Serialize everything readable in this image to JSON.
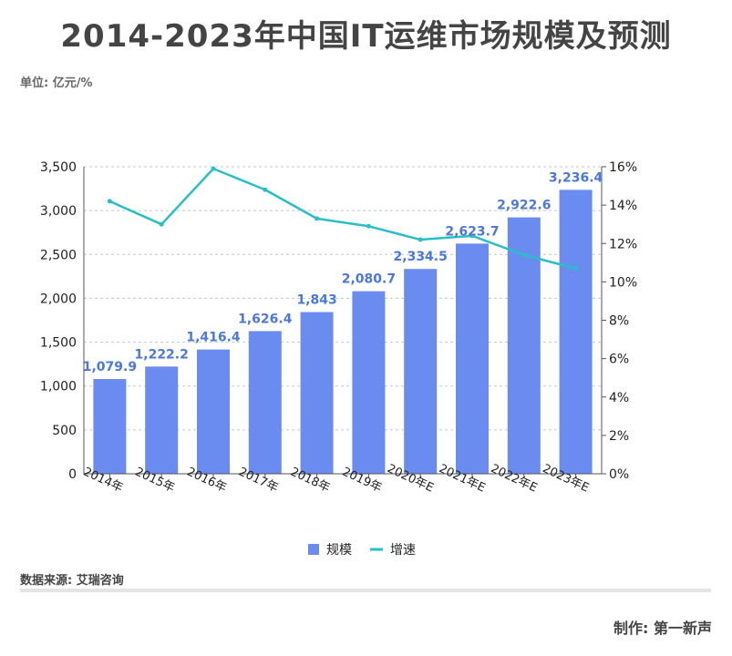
{
  "header": {
    "title": "2014-2023年中国IT运维市场规模及预测",
    "unit": "单位: 亿元/%"
  },
  "footer": {
    "source": "数据来源: 艾瑞咨询",
    "maker": "制作:  第一新声"
  },
  "chart_data": {
    "type": "bar",
    "categories": [
      "2014年",
      "2015年",
      "2016年",
      "2017年",
      "2018年",
      "2019年",
      "2020年E",
      "2021年E",
      "2022年E",
      "2023年E"
    ],
    "series": [
      {
        "name": "规模",
        "type": "bar",
        "axis": "left",
        "color": "#6a8bef",
        "values": [
          1079.9,
          1222.2,
          1416.4,
          1626.4,
          1843,
          2080.7,
          2334.5,
          2623.7,
          2922.6,
          3236.4
        ],
        "labels": [
          "1,079.9",
          "1,222.2",
          "1,416.4",
          "1,626.4",
          "1,843",
          "2,080.7",
          "2,334.5",
          "2,623.7",
          "2,922.6",
          "3,236.4"
        ]
      },
      {
        "name": "增速",
        "type": "line",
        "axis": "right",
        "color": "#27bfc8",
        "values": [
          14.2,
          13.0,
          15.9,
          14.8,
          13.3,
          12.9,
          12.2,
          12.4,
          11.4,
          10.7
        ]
      }
    ],
    "ylim": [
      0,
      3500
    ],
    "y_ticks": [
      "0",
      "500",
      "1,000",
      "1,500",
      "2,000",
      "2,500",
      "3,000",
      "3,500"
    ],
    "y2lim": [
      0,
      16
    ],
    "y2_ticks": [
      "0%",
      "2%",
      "4%",
      "6%",
      "8%",
      "10%",
      "12%",
      "14%",
      "16%"
    ],
    "grid": true,
    "legend_position": "bottom"
  }
}
